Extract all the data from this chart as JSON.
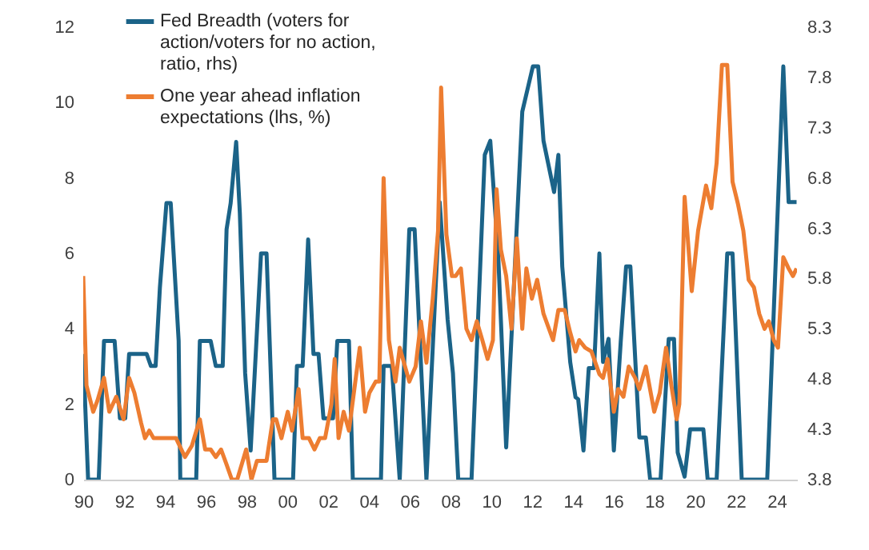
{
  "chart_data": {
    "type": "line",
    "legend": "top left",
    "line_style": "solid",
    "grid": false,
    "xlim": [
      1990,
      2025
    ],
    "xticks": [
      {
        "value": 1990,
        "label": "90"
      },
      {
        "value": 1992,
        "label": "92"
      },
      {
        "value": 1994,
        "label": "94"
      },
      {
        "value": 1996,
        "label": "96"
      },
      {
        "value": 1998,
        "label": "98"
      },
      {
        "value": 2000,
        "label": "00"
      },
      {
        "value": 2002,
        "label": "02"
      },
      {
        "value": 2004,
        "label": "04"
      },
      {
        "value": 2006,
        "label": "06"
      },
      {
        "value": 2008,
        "label": "08"
      },
      {
        "value": 2010,
        "label": "10"
      },
      {
        "value": 2012,
        "label": "12"
      },
      {
        "value": 2014,
        "label": "14"
      },
      {
        "value": 2016,
        "label": "16"
      },
      {
        "value": 2018,
        "label": "18"
      },
      {
        "value": 2020,
        "label": "20"
      },
      {
        "value": 2022,
        "label": "22"
      },
      {
        "value": 2024,
        "label": "24"
      }
    ],
    "ylim": [
      0,
      12
    ],
    "yticks": [
      0,
      2,
      4,
      6,
      8,
      10,
      12
    ],
    "y2lim": [
      3.8,
      8.3
    ],
    "y2ticks": [
      3.8,
      4.3,
      4.8,
      5.3,
      5.8,
      6.3,
      6.8,
      7.3,
      7.8,
      8.3
    ],
    "series": [
      {
        "name": "Fed Breadth (voters for action/voters for no action, ratio, rhs)",
        "color": "#1b6388",
        "axis": "y2",
        "x": [
          1990.0,
          1990.24,
          1990.76,
          1991.02,
          1991.54,
          1991.8,
          1992.06,
          1992.25,
          1993.11,
          1993.32,
          1993.55,
          1993.76,
          1994.08,
          1994.29,
          1994.68,
          1994.76,
          1995.54,
          1995.72,
          1996.25,
          1996.5,
          1996.84,
          1997.03,
          1997.23,
          1997.5,
          1997.68,
          1997.94,
          1998.21,
          1998.72,
          1998.99,
          1999.38,
          2000.29,
          2000.48,
          2000.76,
          2001.03,
          2001.29,
          2001.54,
          2001.78,
          2002.25,
          2002.46,
          2003.03,
          2003.22,
          2004.6,
          2004.73,
          2005.13,
          2005.52,
          2005.99,
          2006.25,
          2006.83,
          2007.48,
          2007.87,
          2008.13,
          2008.39,
          2009.04,
          2009.69,
          2009.96,
          2010.35,
          2010.74,
          2011.53,
          2012.05,
          2012.31,
          2012.57,
          2013.09,
          2013.3,
          2013.49,
          2013.88,
          2014.14,
          2014.27,
          2014.53,
          2014.79,
          2015.05,
          2015.31,
          2015.49,
          2015.76,
          2016.02,
          2016.36,
          2016.62,
          2016.83,
          2017.27,
          2017.59,
          2017.8,
          2018.31,
          2018.71,
          2018.97,
          2019.15,
          2019.49,
          2019.76,
          2020.41,
          2020.62,
          2021.06,
          2021.58,
          2021.84,
          2022.29,
          2023.54,
          2024.33,
          2024.59,
          2024.98
        ],
        "values": [
          5.05,
          3.8,
          3.8,
          5.18,
          5.18,
          4.41,
          4.41,
          5.05,
          5.05,
          4.93,
          4.93,
          5.71,
          6.55,
          6.55,
          5.18,
          3.8,
          3.8,
          5.18,
          5.18,
          4.93,
          4.93,
          6.29,
          6.55,
          7.16,
          6.45,
          4.86,
          4.09,
          6.05,
          6.05,
          3.8,
          3.8,
          4.93,
          4.93,
          6.19,
          5.05,
          5.05,
          4.41,
          4.41,
          5.18,
          5.18,
          3.8,
          3.8,
          4.93,
          4.93,
          3.8,
          6.29,
          6.29,
          3.8,
          6.56,
          5.39,
          4.86,
          3.8,
          3.8,
          7.03,
          7.17,
          6.03,
          4.12,
          7.46,
          7.91,
          7.91,
          7.17,
          6.66,
          7.03,
          5.92,
          4.97,
          4.62,
          4.6,
          4.09,
          4.91,
          4.91,
          6.05,
          4.97,
          5.2,
          4.09,
          5.18,
          5.92,
          5.92,
          4.22,
          4.22,
          3.8,
          3.8,
          5.2,
          5.2,
          4.07,
          3.83,
          4.3,
          4.3,
          3.8,
          3.8,
          6.05,
          6.05,
          3.8,
          3.8,
          7.91,
          6.56,
          6.56
        ]
      },
      {
        "name": "One year ahead inflation expectations (lhs, %)",
        "color": "#ed7d31",
        "x": [
          1990.0,
          1990.16,
          1990.49,
          1990.7,
          1991.02,
          1991.28,
          1991.62,
          1991.98,
          1992.25,
          1992.51,
          1992.84,
          1993.03,
          1993.24,
          1993.45,
          1994.55,
          1994.99,
          1995.33,
          1995.72,
          1995.98,
          1996.25,
          1996.5,
          1996.76,
          1997.03,
          1997.29,
          1997.55,
          1997.99,
          1998.25,
          1998.52,
          1998.99,
          1999.3,
          1999.46,
          1999.72,
          2000.03,
          2000.24,
          2000.56,
          2000.76,
          2001.07,
          2001.34,
          2001.6,
          2001.86,
          2002.17,
          2002.33,
          2002.52,
          2002.77,
          2003.03,
          2003.56,
          2003.82,
          2004.03,
          2004.34,
          2004.52,
          2004.73,
          2004.99,
          2005.31,
          2005.52,
          2005.99,
          2006.3,
          2006.56,
          2006.83,
          2007.14,
          2007.4,
          2007.55,
          2007.81,
          2008.08,
          2008.26,
          2008.52,
          2008.79,
          2009.04,
          2009.3,
          2009.57,
          2009.83,
          2010.09,
          2010.27,
          2010.48,
          2010.74,
          2011.0,
          2011.26,
          2011.53,
          2011.73,
          2012.0,
          2012.26,
          2012.57,
          2013.04,
          2013.3,
          2013.61,
          2013.88,
          2014.14,
          2014.32,
          2014.61,
          2014.92,
          2015.31,
          2015.49,
          2015.71,
          2016.02,
          2016.23,
          2016.49,
          2016.75,
          2017.06,
          2017.27,
          2017.59,
          2018.0,
          2018.27,
          2018.58,
          2018.84,
          2019.1,
          2019.23,
          2019.49,
          2019.84,
          2020.15,
          2020.54,
          2020.8,
          2021.06,
          2021.32,
          2021.58,
          2021.84,
          2022.11,
          2022.37,
          2022.63,
          2022.89,
          2023.15,
          2023.41,
          2023.62,
          2023.86,
          2024.07,
          2024.33,
          2024.59,
          2024.8,
          2024.98
        ],
        "values": [
          5.4,
          2.5,
          1.8,
          2.1,
          2.7,
          1.8,
          2.2,
          1.6,
          2.7,
          2.3,
          1.5,
          1.1,
          1.3,
          1.1,
          1.1,
          0.6,
          0.9,
          1.6,
          0.8,
          0.8,
          0.6,
          0.8,
          0.4,
          0,
          0,
          0.8,
          0,
          0.5,
          0.5,
          1.6,
          1.6,
          1.1,
          1.8,
          1.3,
          2.4,
          1.1,
          1.1,
          0.8,
          1.1,
          1.1,
          2.0,
          3.2,
          1.1,
          1.8,
          1.3,
          3.5,
          1.8,
          2.3,
          2.6,
          2.6,
          8.0,
          3.7,
          2.6,
          3.5,
          2.6,
          3.0,
          4.2,
          3.1,
          4.8,
          6.6,
          10.4,
          6.5,
          5.4,
          5.4,
          5.6,
          4.0,
          3.7,
          4.2,
          3.7,
          3.2,
          3.7,
          7.7,
          6.1,
          5.4,
          4.0,
          6.4,
          4.0,
          5.6,
          4.8,
          5.3,
          4.4,
          3.7,
          4.5,
          4.5,
          3.9,
          3.4,
          3.7,
          3.5,
          3.4,
          2.8,
          2.7,
          3.2,
          1.8,
          2.4,
          2.2,
          3.0,
          2.7,
          2.4,
          3.0,
          1.8,
          2.3,
          3.5,
          2.5,
          1.6,
          2.0,
          7.5,
          5.0,
          6.6,
          7.8,
          7.2,
          8.4,
          11.0,
          11.0,
          7.9,
          7.3,
          6.6,
          5.3,
          5.1,
          4.4,
          4.0,
          4.2,
          3.7,
          3.5,
          5.9,
          5.6,
          5.4,
          5.6
        ]
      }
    ]
  }
}
